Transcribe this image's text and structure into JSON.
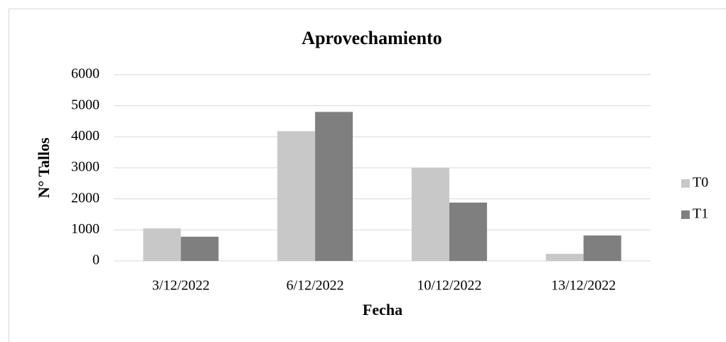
{
  "chart_data": {
    "type": "bar",
    "title": "Aprovechamiento",
    "x_label": "Fecha",
    "y_label": "N° Tallos",
    "categories": [
      "3/12/2022",
      "6/12/2022",
      "10/12/2022",
      "13/12/2022"
    ],
    "series": [
      {
        "name": "T0",
        "color": "#c8c8c8",
        "values": [
          1050,
          4180,
          3000,
          230
        ]
      },
      {
        "name": "T1",
        "color": "#7f7f7f",
        "values": [
          780,
          4800,
          1880,
          820
        ]
      }
    ],
    "ylim": [
      0,
      6000
    ],
    "yticks": [
      0,
      1000,
      2000,
      3000,
      4000,
      5000,
      6000
    ],
    "grid": true,
    "legend": "right"
  }
}
